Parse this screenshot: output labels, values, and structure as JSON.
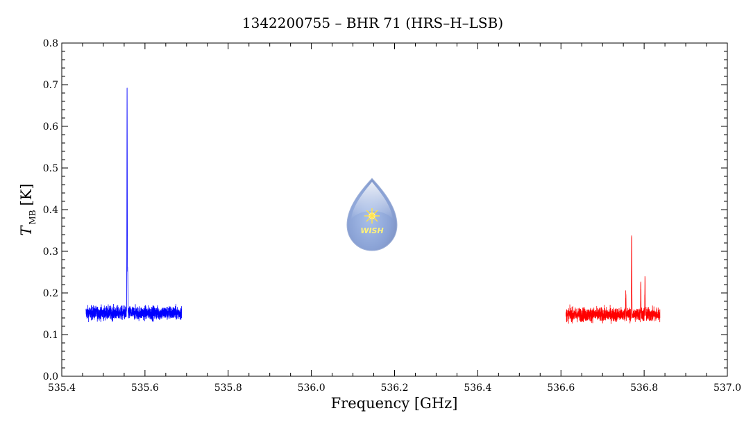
{
  "chart_data": {
    "type": "line",
    "title": "1342200755 – BHR 71 (HRS–H–LSB)",
    "xlabel": "Frequency [GHz]",
    "ylabel_main": "T",
    "ylabel_sub": "MB",
    "ylabel_unit": "[K]",
    "xlim": [
      535.4,
      537.0
    ],
    "ylim": [
      0.0,
      0.8
    ],
    "xticks": [
      "535.4",
      "535.6",
      "535.8",
      "536.0",
      "536.2",
      "536.4",
      "536.6",
      "536.8",
      "537.0"
    ],
    "xtick_values": [
      535.4,
      535.6,
      535.8,
      536.0,
      536.2,
      536.4,
      536.6,
      536.8,
      537.0
    ],
    "yticks": [
      "0.0",
      "0.1",
      "0.2",
      "0.3",
      "0.4",
      "0.5",
      "0.6",
      "0.7",
      "0.8"
    ],
    "ytick_values": [
      0.0,
      0.1,
      0.2,
      0.3,
      0.4,
      0.5,
      0.6,
      0.7,
      0.8
    ],
    "series": [
      {
        "color": "#0000ff",
        "x_range": [
          535.458,
          535.688
        ],
        "baseline": 0.152,
        "noise_amplitude": 0.03,
        "peaks": [
          {
            "x": 535.557,
            "y": 0.695
          },
          {
            "x": 535.5585,
            "y": 0.245
          }
        ]
      },
      {
        "color": "#ff0000",
        "x_range": [
          536.612,
          536.838
        ],
        "baseline": 0.148,
        "noise_amplitude": 0.03,
        "peaks": [
          {
            "x": 536.77,
            "y": 0.345
          },
          {
            "x": 536.792,
            "y": 0.232
          },
          {
            "x": 536.802,
            "y": 0.24
          },
          {
            "x": 536.756,
            "y": 0.208
          }
        ]
      }
    ],
    "grid": false,
    "watermark": "WISH"
  }
}
